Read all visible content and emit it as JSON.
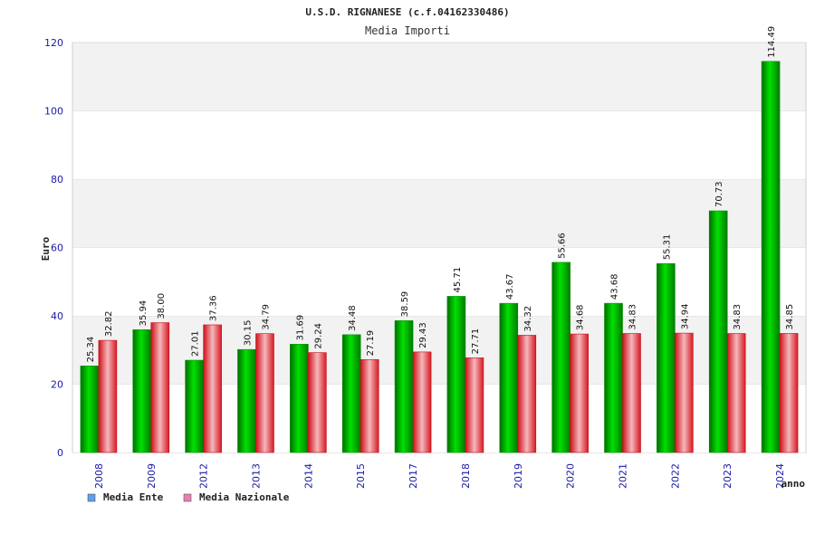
{
  "chart_data": {
    "type": "bar",
    "title": "U.S.D. RIGNANESE (c.f.04162330486)",
    "subtitle": "Media Importi",
    "ylabel": "Euro",
    "xlabel": "anno",
    "ylim": [
      0,
      120
    ],
    "yticks": [
      0,
      20,
      40,
      60,
      80,
      100,
      120
    ],
    "categories": [
      "2008",
      "2009",
      "2012",
      "2013",
      "2014",
      "2015",
      "2017",
      "2018",
      "2019",
      "2020",
      "2021",
      "2022",
      "2023",
      "2024"
    ],
    "series": [
      {
        "name": "Media Ente",
        "color": "#00c000",
        "values": [
          25.34,
          35.94,
          27.01,
          30.15,
          31.69,
          34.48,
          38.59,
          45.71,
          43.67,
          55.66,
          43.68,
          55.31,
          70.73,
          114.49
        ],
        "labels": [
          "25.34",
          "35.94",
          "27.01",
          "30.15",
          "31.69",
          "34.48",
          "38.59",
          "45.71",
          "43.67",
          "55.66",
          "43.68",
          "55.31",
          "70.73",
          "114.49"
        ]
      },
      {
        "name": "Media Nazionale",
        "color": "#e8202a",
        "values": [
          32.82,
          38.0,
          37.36,
          34.79,
          29.24,
          27.19,
          29.43,
          27.71,
          34.32,
          34.68,
          34.83,
          34.94,
          34.83,
          34.85
        ],
        "labels": [
          "32.82",
          "38.00",
          "37.36",
          "34.79",
          "29.24",
          "27.19",
          "29.43",
          "27.71",
          "34.32",
          "34.68",
          "34.83",
          "34.94",
          "34.83",
          "34.85"
        ]
      }
    ],
    "legend": [
      {
        "name": "Media Ente",
        "swatch": "#5f9fef"
      },
      {
        "name": "Media Nazionale",
        "swatch": "#e87fb0"
      }
    ],
    "grid": true,
    "legend_position": "bottom-left"
  }
}
